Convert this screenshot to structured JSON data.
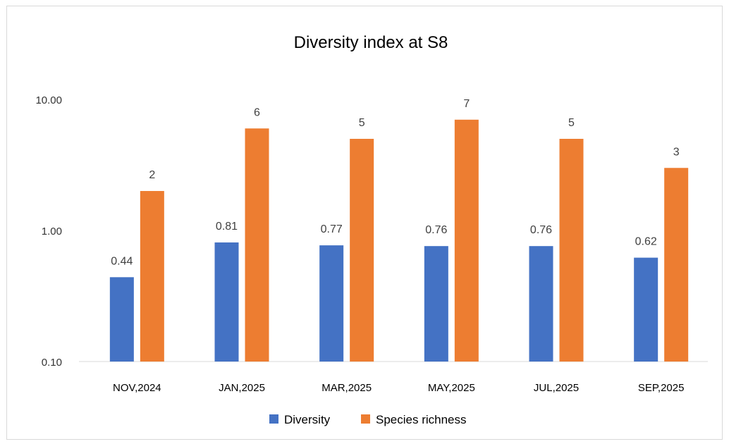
{
  "chart_data": {
    "type": "bar",
    "title": "Diversity index at S8",
    "xlabel": "",
    "ylabel": "",
    "yscale": "log",
    "ylim": [
      0.1,
      10
    ],
    "yticks": [
      "0.10",
      "1.00",
      "10.00"
    ],
    "grid": false,
    "legend_position": "bottom",
    "categories": [
      "NOV,2024",
      "JAN,2025",
      "MAR,2025",
      "MAY,2025",
      "JUL,2025",
      "SEP,2025"
    ],
    "series": [
      {
        "name": "Diversity",
        "color": "#4472C4",
        "values": [
          0.44,
          0.81,
          0.77,
          0.76,
          0.76,
          0.62
        ],
        "labels": [
          "0.44",
          "0.81",
          "0.77",
          "0.76",
          "0.76",
          "0.62"
        ]
      },
      {
        "name": "Species richness",
        "color": "#ED7D31",
        "values": [
          2,
          6,
          5,
          7,
          5,
          3
        ],
        "labels": [
          "2",
          "6",
          "5",
          "7",
          "5",
          "3"
        ]
      }
    ]
  }
}
